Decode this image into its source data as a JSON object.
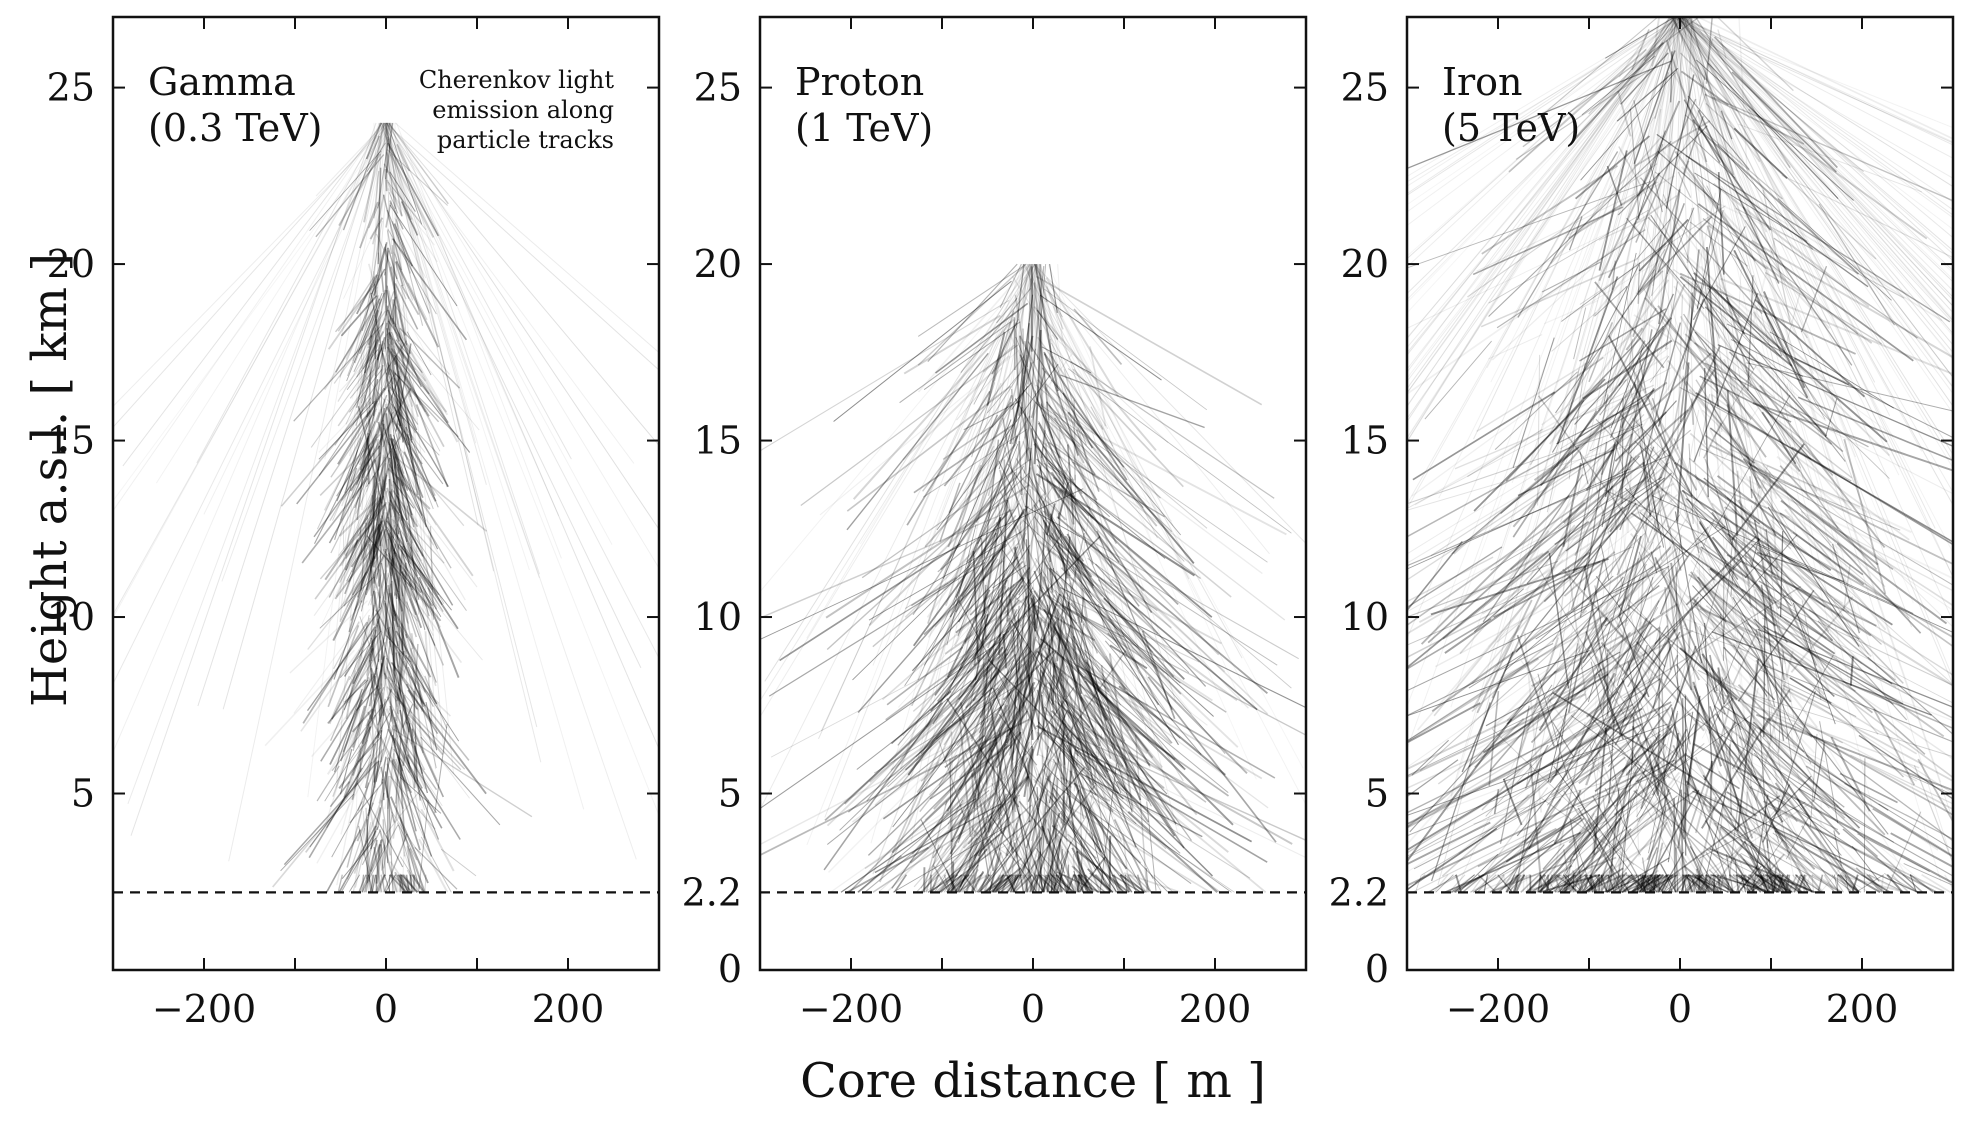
{
  "chart_data": [
    {
      "type": "scatter",
      "panel_label": [
        "Gamma",
        "(0.3 TeV)"
      ],
      "annotation": [
        "Cherenkov light",
        "emission along",
        "particle tracks"
      ],
      "x_ticks": [
        "−200",
        "0",
        "200"
      ],
      "y_ticks": [
        "25",
        "20",
        "15",
        "10",
        "5"
      ],
      "y_tick_values": [
        25,
        20,
        15,
        10,
        5
      ],
      "xlim": [
        -300,
        300
      ],
      "ylim": [
        0,
        27
      ],
      "ground_level_km": 2.2,
      "shower": {
        "spread_m": 35,
        "max_height_km": 24,
        "peak_height_km": 12,
        "density": "narrow"
      }
    },
    {
      "type": "scatter",
      "panel_label": [
        "Proton",
        "(1 TeV)"
      ],
      "x_ticks": [
        "−200",
        "0",
        "200"
      ],
      "y_ticks": [
        "25",
        "20",
        "15",
        "10",
        "5",
        "2.2",
        "0"
      ],
      "y_tick_values": [
        25,
        20,
        15,
        10,
        5,
        2.2,
        0
      ],
      "xlim": [
        -300,
        300
      ],
      "ylim": [
        0,
        27
      ],
      "ground_level_km": 2.2,
      "shower": {
        "spread_m": 90,
        "max_height_km": 20,
        "peak_height_km": 9,
        "density": "medium"
      }
    },
    {
      "type": "scatter",
      "panel_label": [
        "Iron",
        "(5 TeV)"
      ],
      "x_ticks": [
        "−200",
        "0",
        "200"
      ],
      "y_ticks": [
        "25",
        "20",
        "15",
        "10",
        "5",
        "2.2",
        "0"
      ],
      "y_tick_values": [
        25,
        20,
        15,
        10,
        5,
        2.2,
        0
      ],
      "xlim": [
        -300,
        300
      ],
      "ylim": [
        0,
        27
      ],
      "ground_level_km": 2.2,
      "shower": {
        "spread_m": 180,
        "max_height_km": 27,
        "peak_height_km": 8,
        "density": "wide"
      }
    }
  ],
  "axes": {
    "xlabel": "Core distance [ m ]",
    "ylabel": "Height a.s.l. [ km ]"
  },
  "colors": {
    "tracks": "#000000",
    "frame": "#111111",
    "background": "#ffffff"
  }
}
